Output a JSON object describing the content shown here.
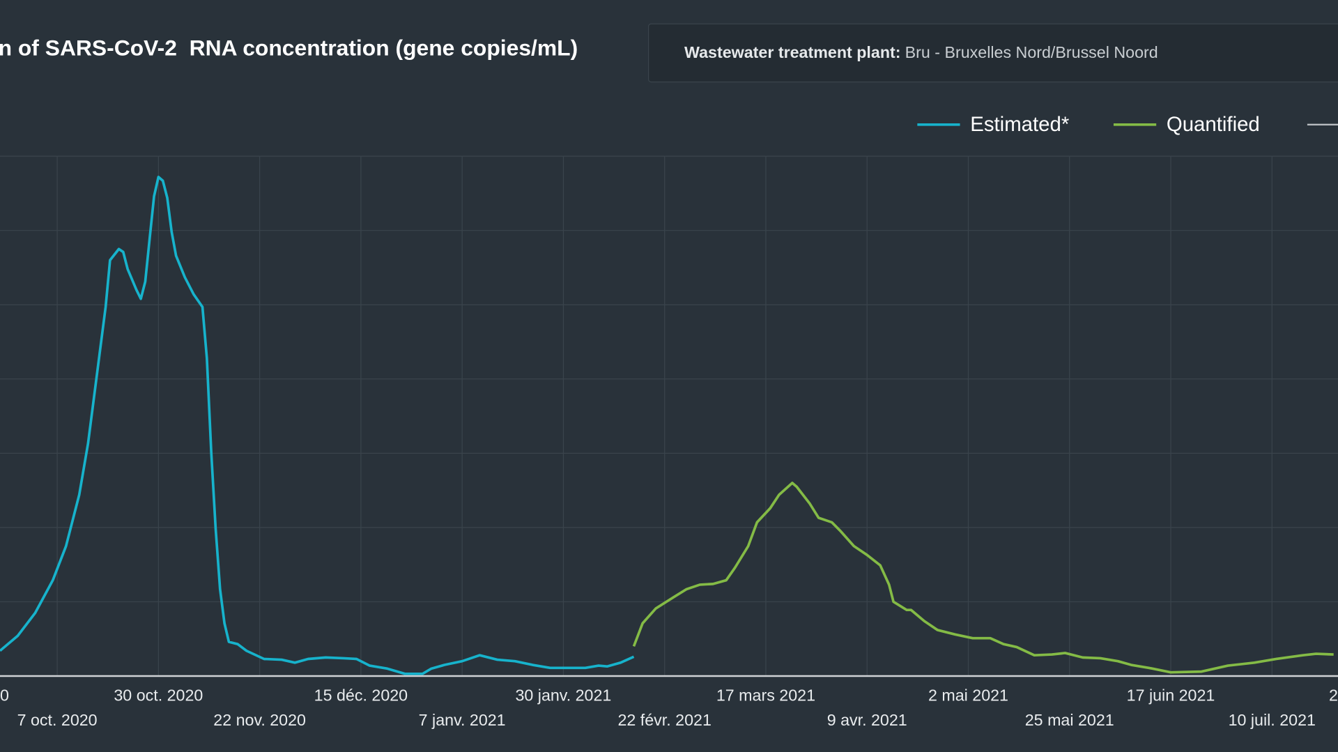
{
  "chart_data": {
    "type": "line",
    "title": "n of SARS-CoV-2  RNA concentration (gene copies/mL)",
    "info_label": "Wastewater treatment plant:",
    "info_value": "Bru - Bruxelles Nord/Brussel Noord",
    "x": [
      "2020-09-24",
      "2020-09-28",
      "2020-10-02",
      "2020-10-06",
      "2020-10-09",
      "2020-10-12",
      "2020-10-14",
      "2020-10-16",
      "2020-10-18",
      "2020-10-19",
      "2020-10-21",
      "2020-10-22",
      "2020-10-23",
      "2020-10-25",
      "2020-10-26",
      "2020-10-27",
      "2020-10-28",
      "2020-10-29",
      "2020-10-30",
      "2020-10-31",
      "2020-11-01",
      "2020-11-02",
      "2020-11-03",
      "2020-11-05",
      "2020-11-07",
      "2020-11-09",
      "2020-11-10",
      "2020-11-11",
      "2020-11-12",
      "2020-11-13",
      "2020-11-14",
      "2020-11-15",
      "2020-11-17",
      "2020-11-19",
      "2020-11-23",
      "2020-11-27",
      "2020-11-30",
      "2020-12-03",
      "2020-12-07",
      "2020-12-11",
      "2020-12-14",
      "2020-12-17",
      "2020-12-21",
      "2020-12-25",
      "2020-12-29",
      "2020-12-31",
      "2021-01-03",
      "2021-01-07",
      "2021-01-11",
      "2021-01-15",
      "2021-01-19",
      "2021-01-23",
      "2021-01-27",
      "2021-01-31",
      "2021-02-04",
      "2021-02-07",
      "2021-02-09",
      "2021-02-12",
      "2021-02-15",
      "2021-02-17",
      "2021-02-20",
      "2021-02-24",
      "2021-02-27",
      "2021-03-02",
      "2021-03-05",
      "2021-03-08",
      "2021-03-10",
      "2021-03-13",
      "2021-03-15",
      "2021-03-18",
      "2021-03-20",
      "2021-03-23",
      "2021-03-24",
      "2021-03-27",
      "2021-03-29",
      "2021-04-01",
      "2021-04-03",
      "2021-04-06",
      "2021-04-09",
      "2021-04-12",
      "2021-04-14",
      "2021-04-15",
      "2021-04-18",
      "2021-04-19",
      "2021-04-22",
      "2021-04-25",
      "2021-04-29",
      "2021-05-03",
      "2021-05-07",
      "2021-05-10",
      "2021-05-13",
      "2021-05-17",
      "2021-05-21",
      "2021-05-24",
      "2021-05-28",
      "2021-06-01",
      "2021-06-05",
      "2021-06-08",
      "2021-06-12",
      "2021-06-17",
      "2021-06-24",
      "2021-06-30",
      "2021-07-06",
      "2021-07-11",
      "2021-07-17",
      "2021-07-20",
      "2021-07-24"
    ],
    "series": [
      {
        "name": "Estimated*",
        "color": "#17b3cc",
        "values": [
          0.34,
          0.54,
          0.85,
          1.29,
          1.75,
          2.44,
          3.13,
          4.05,
          4.97,
          5.6,
          5.75,
          5.71,
          5.48,
          5.2,
          5.08,
          5.31,
          5.89,
          6.46,
          6.72,
          6.67,
          6.44,
          5.98,
          5.66,
          5.37,
          5.14,
          4.97,
          4.28,
          3.01,
          1.98,
          1.17,
          0.71,
          0.46,
          0.43,
          0.34,
          0.23,
          0.22,
          0.18,
          0.23,
          0.25,
          0.24,
          0.23,
          0.14,
          0.1,
          0.03,
          0.03,
          0.1,
          0.15,
          0.2,
          0.28,
          0.22,
          0.2,
          0.15,
          0.11,
          0.11,
          0.11,
          0.14,
          0.13,
          0.18,
          0.26,
          null,
          null,
          null,
          null,
          null,
          null,
          null,
          null,
          null,
          null,
          null,
          null,
          null,
          null,
          null,
          null,
          null,
          null,
          null,
          null,
          null,
          null,
          null,
          null,
          null,
          null,
          null,
          null,
          null,
          null,
          null,
          null,
          null,
          null,
          null,
          null,
          null,
          null,
          null,
          null,
          null,
          null,
          null,
          null,
          null,
          null,
          null,
          null
        ]
      },
      {
        "name": "Quantified",
        "color": "#84bb46",
        "values": [
          null,
          null,
          null,
          null,
          null,
          null,
          null,
          null,
          null,
          null,
          null,
          null,
          null,
          null,
          null,
          null,
          null,
          null,
          null,
          null,
          null,
          null,
          null,
          null,
          null,
          null,
          null,
          null,
          null,
          null,
          null,
          null,
          null,
          null,
          null,
          null,
          null,
          null,
          null,
          null,
          null,
          null,
          null,
          null,
          null,
          null,
          null,
          null,
          null,
          null,
          null,
          null,
          null,
          null,
          null,
          null,
          null,
          null,
          0.4,
          0.71,
          0.91,
          1.06,
          1.17,
          1.23,
          1.24,
          1.29,
          1.46,
          1.75,
          2.07,
          2.26,
          2.44,
          2.6,
          2.55,
          2.32,
          2.13,
          2.07,
          1.95,
          1.75,
          1.63,
          1.49,
          1.23,
          1.0,
          0.89,
          0.89,
          0.74,
          0.62,
          0.56,
          0.51,
          0.51,
          0.43,
          0.39,
          0.28,
          0.29,
          0.31,
          0.25,
          0.24,
          0.2,
          0.15,
          0.11,
          0.05,
          0.06,
          0.14,
          0.18,
          0.23,
          0.28,
          0.3,
          0.29
        ]
      }
    ],
    "xlim": [
      "2020-09-24",
      "2021-07-25"
    ],
    "xticks": [
      {
        "value": "2020-09-14",
        "label": "0"
      },
      {
        "value": "2020-10-07",
        "label": "7 oct. 2020"
      },
      {
        "value": "2020-10-30",
        "label": "30 oct. 2020"
      },
      {
        "value": "2020-11-22",
        "label": "22 nov. 2020"
      },
      {
        "value": "2020-12-15",
        "label": "15 déc. 2020"
      },
      {
        "value": "2021-01-07",
        "label": "7 janv. 2021"
      },
      {
        "value": "2021-01-30",
        "label": "30 janv. 2021"
      },
      {
        "value": "2021-02-22",
        "label": "22 févr. 2021"
      },
      {
        "value": "2021-03-17",
        "label": "17 mars 2021"
      },
      {
        "value": "2021-04-09",
        "label": "9 avr. 2021"
      },
      {
        "value": "2021-05-02",
        "label": "2 mai 2021"
      },
      {
        "value": "2021-05-25",
        "label": "25 mai 2021"
      },
      {
        "value": "2021-06-17",
        "label": "17 juin 2021"
      },
      {
        "value": "2021-07-10",
        "label": "10 juil. 2021"
      },
      {
        "value": "2021-08-02",
        "label": "2"
      }
    ],
    "ylim": [
      0,
      7
    ],
    "grid": true
  }
}
